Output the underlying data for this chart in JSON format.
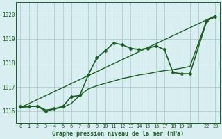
{
  "background_color": "#d8eef0",
  "grid_color": "#aecdd1",
  "line_color": "#1a5e20",
  "title": "Graphe pression niveau de la mer (hPa)",
  "ylabel_ticks": [
    1016,
    1017,
    1018,
    1019,
    1020
  ],
  "xlim": [
    -0.5,
    23.5
  ],
  "ylim": [
    1015.5,
    1020.5
  ],
  "series": [
    {
      "x": [
        0,
        1,
        2,
        3,
        4,
        5,
        6,
        7,
        8,
        9,
        10,
        11,
        12,
        13,
        14,
        15,
        16,
        17,
        18,
        19,
        20,
        22,
        23
      ],
      "y": [
        1016.2,
        1016.2,
        1016.2,
        1016.0,
        1016.1,
        1016.2,
        1016.6,
        1016.65,
        1017.5,
        1018.2,
        1018.5,
        1018.82,
        1018.75,
        1018.6,
        1018.55,
        1018.6,
        1018.7,
        1018.55,
        1017.6,
        1017.55,
        1017.55,
        1019.75,
        1019.9
      ],
      "marker": "D",
      "markersize": 2.5,
      "linewidth": 1.2
    },
    {
      "x": [
        0,
        23
      ],
      "y": [
        1016.15,
        1019.95
      ],
      "marker": null,
      "markersize": 0,
      "linewidth": 1.0
    },
    {
      "x": [
        0,
        1,
        2,
        3,
        4,
        5,
        6,
        7,
        8,
        9,
        10,
        11,
        12,
        13,
        14,
        15,
        16,
        17,
        18,
        19,
        20,
        22,
        23
      ],
      "y": [
        1016.15,
        1016.18,
        1016.22,
        1016.05,
        1016.1,
        1016.15,
        1016.32,
        1016.65,
        1016.92,
        1017.05,
        1017.15,
        1017.25,
        1017.35,
        1017.42,
        1017.5,
        1017.55,
        1017.62,
        1017.68,
        1017.72,
        1017.78,
        1017.85,
        1019.78,
        1019.92
      ],
      "marker": null,
      "markersize": 0,
      "linewidth": 1.0
    }
  ],
  "xtick_labels": [
    "0",
    "1",
    "2",
    "3",
    "4",
    "5",
    "6",
    "7",
    "8",
    "9",
    "10",
    "11",
    "12",
    "13",
    "14",
    "15",
    "16",
    "17",
    "18",
    "19",
    "20",
    "",
    "22",
    "23"
  ],
  "xtick_positions": [
    0,
    1,
    2,
    3,
    4,
    5,
    6,
    7,
    8,
    9,
    10,
    11,
    12,
    13,
    14,
    15,
    16,
    17,
    18,
    19,
    20,
    21,
    22,
    23
  ]
}
